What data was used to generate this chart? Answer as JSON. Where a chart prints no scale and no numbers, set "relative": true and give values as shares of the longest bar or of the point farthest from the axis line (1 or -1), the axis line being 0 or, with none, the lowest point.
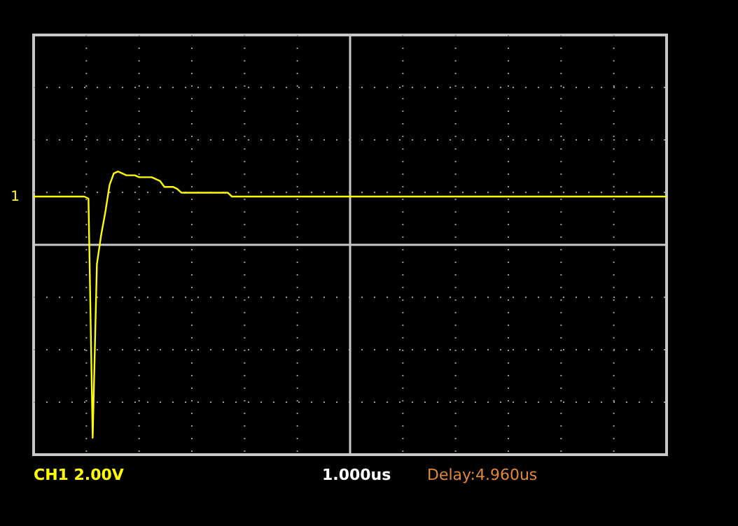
{
  "chart_data": {
    "type": "line",
    "relative": true,
    "grid": true,
    "legend": false,
    "line_style": "solid",
    "marker": "none",
    "categories": [
      null,
      null,
      null,
      null,
      null,
      null,
      null,
      null,
      null,
      null,
      null,
      null,
      null,
      null,
      null,
      null,
      null,
      null,
      null,
      null,
      null,
      null,
      null,
      null,
      null,
      null,
      null,
      null,
      null,
      null,
      null,
      null,
      null,
      null,
      null,
      null,
      null,
      null,
      null,
      null,
      null,
      null,
      null,
      null,
      null,
      null,
      null,
      null,
      null,
      null,
      null,
      null,
      null,
      null,
      null,
      null,
      null,
      null,
      null,
      null,
      null,
      null,
      null,
      null,
      null,
      null,
      null,
      null,
      null,
      null,
      null,
      null,
      null,
      null,
      null,
      null,
      null,
      null,
      null,
      null,
      null,
      null,
      null,
      null,
      null,
      null,
      null,
      null,
      null,
      null,
      null,
      null,
      null,
      null,
      null,
      null,
      null,
      null,
      null,
      null,
      null,
      null,
      null,
      null,
      null,
      null,
      null,
      null,
      null,
      null,
      null,
      null,
      null,
      null,
      null,
      null,
      null,
      null,
      null,
      null,
      null,
      null,
      null,
      null,
      null,
      null,
      null,
      null,
      null,
      null,
      null,
      null,
      null,
      null,
      null,
      null,
      null,
      null,
      null,
      null,
      null,
      null,
      null,
      null,
      null,
      null,
      null,
      null,
      null,
      null,
      null
    ],
    "series": [
      {
        "name": "1",
        "color": "#ffff00",
        "values": [
          0.25,
          0.25,
          0.25,
          0.25,
          0.25,
          0.25,
          0.25,
          0.25,
          0.25,
          0.25,
          0.25,
          0.25,
          0.25,
          0.24,
          -1,
          -0.1,
          0.05,
          0.17,
          0.31,
          0.37,
          0.38,
          0.37,
          0.36,
          0.36,
          0.36,
          0.35,
          0.35,
          0.35,
          0.35,
          0.34,
          0.33,
          0.3,
          0.3,
          0.3,
          0.29,
          0.27,
          0.27,
          0.27,
          0.27,
          0.27,
          0.27,
          0.27,
          0.27,
          0.27,
          0.27,
          0.27,
          0.27,
          0.25,
          0.25,
          0.25,
          0.25,
          0.25,
          0.25,
          0.25,
          0.25,
          0.25,
          0.25,
          0.25,
          0.25,
          0.25,
          0.25,
          0.25,
          0.25,
          0.25,
          0.25,
          0.25,
          0.25,
          0.25,
          0.25,
          0.25,
          0.25,
          0.25,
          0.25,
          0.25,
          0.25,
          0.25,
          0.25,
          0.25,
          0.25,
          0.25,
          0.25,
          0.25,
          0.25,
          0.25,
          0.25,
          0.25,
          0.25,
          0.25,
          0.25,
          0.25,
          0.25,
          0.25,
          0.25,
          0.25,
          0.25,
          0.25,
          0.25,
          0.25,
          0.25,
          0.25,
          0.25,
          0.25,
          0.25,
          0.25,
          0.25,
          0.25,
          0.25,
          0.25,
          0.25,
          0.25,
          0.25,
          0.25,
          0.25,
          0.25,
          0.25,
          0.25,
          0.25,
          0.25,
          0.25,
          0.25,
          0.25,
          0.25,
          0.25,
          0.25,
          0.25,
          0.25,
          0.25,
          0.25,
          0.25,
          0.25,
          0.25,
          0.25,
          0.25,
          0.25,
          0.25,
          0.25,
          0.25,
          0.25,
          0.25,
          0.25,
          0.25,
          0.25,
          0.25,
          0.25,
          0.25,
          0.25,
          0.25,
          0.25,
          0.25,
          0.25,
          0.25
        ]
      }
    ],
    "annotations": [
      "CH1 2.00V",
      "1.000us",
      "Delay:4.960us"
    ]
  }
}
